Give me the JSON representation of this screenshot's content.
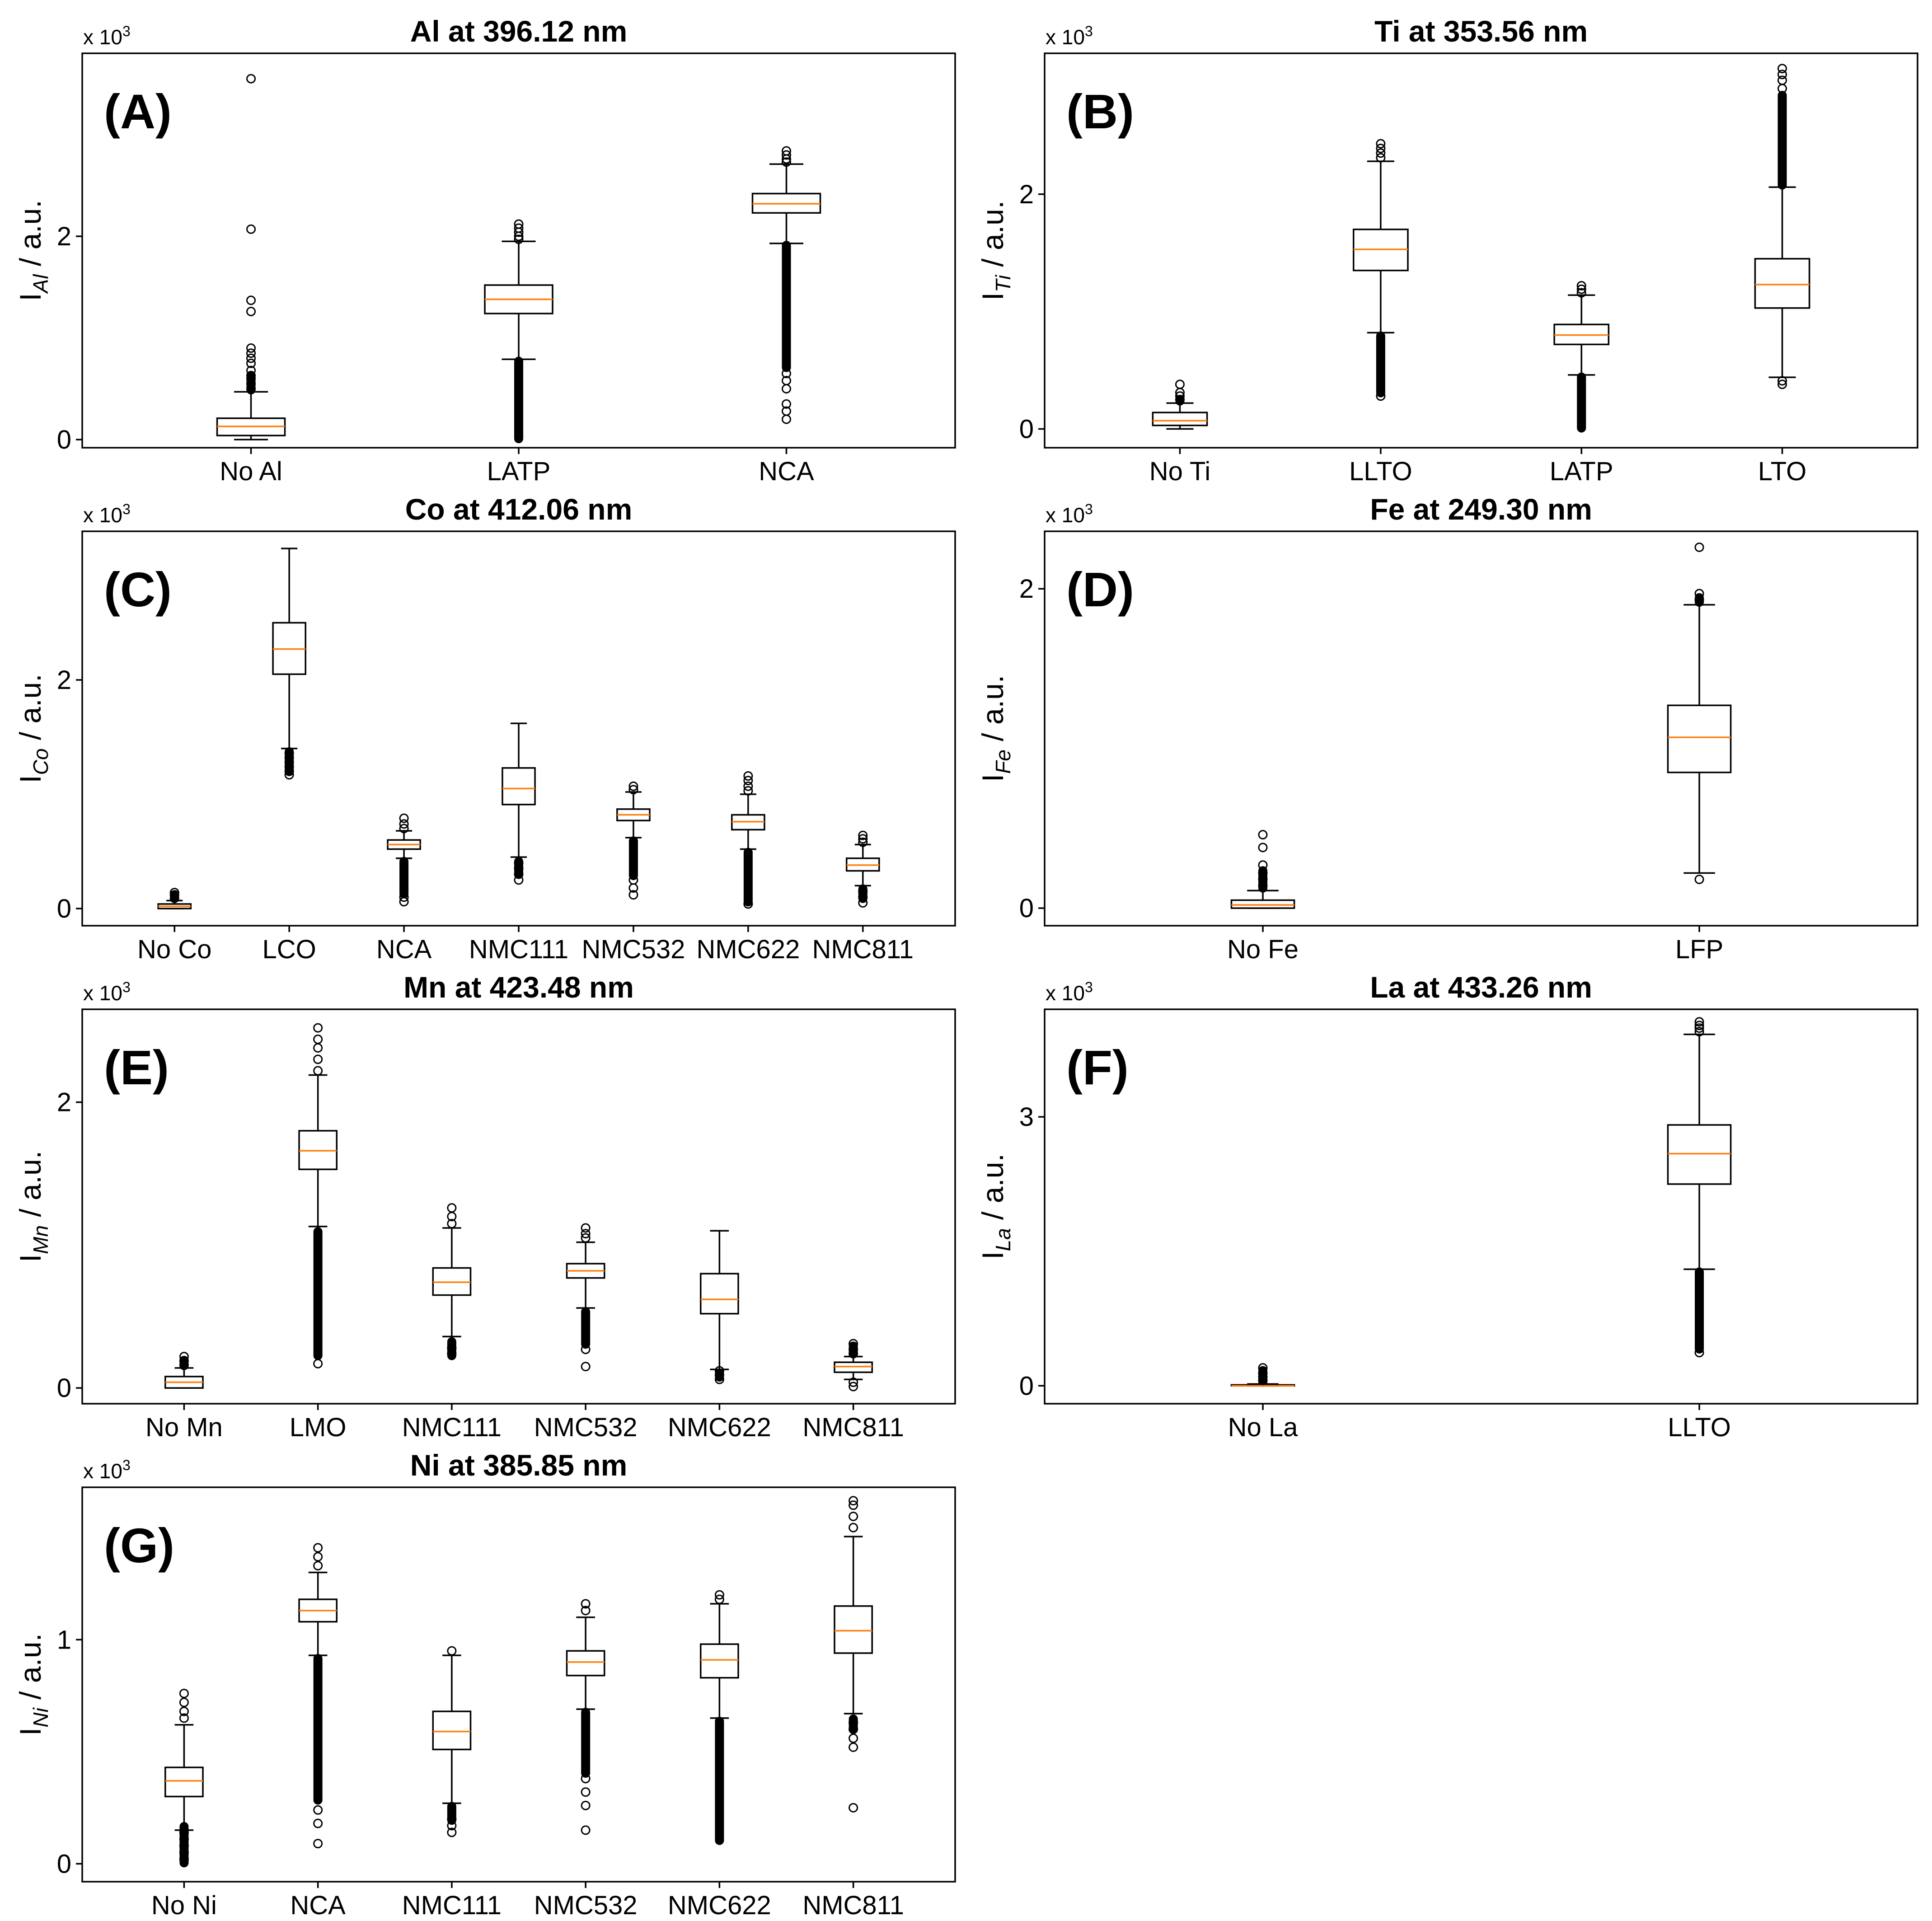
{
  "chart_data": [
    {
      "type": "boxplot",
      "panel": "(A)",
      "title": "Al at 396.12 nm",
      "ylabel_main": "I",
      "ylabel_sub": "Al",
      "ylabel_suffix": " / a.u.",
      "y_multiplier": "x 10",
      "y_multiplier_exp": "3",
      "ylim": [
        -0.08,
        3.8
      ],
      "yticks": [
        0,
        2
      ],
      "categories": [
        "No Al",
        "LATP",
        "NCA"
      ],
      "boxes": [
        {
          "q1": 0.04,
          "median": 0.13,
          "q3": 0.21,
          "whislo": 0.0,
          "whishi": 0.47,
          "fliers": [
            0.5,
            0.55,
            0.6,
            0.63,
            0.68,
            0.75,
            0.8,
            0.85,
            0.9,
            1.26,
            1.37,
            2.07,
            3.55
          ],
          "flier_band": [
            0.48,
            0.64
          ]
        },
        {
          "q1": 1.24,
          "median": 1.38,
          "q3": 1.52,
          "whislo": 0.79,
          "whishi": 1.95,
          "fliers": [
            1.97,
            2.0,
            2.04,
            2.08,
            2.12
          ],
          "flier_band": [
            0.0,
            0.78
          ]
        },
        {
          "q1": 2.23,
          "median": 2.32,
          "q3": 2.42,
          "whislo": 1.93,
          "whishi": 2.71,
          "fliers": [
            2.73,
            2.76,
            2.8,
            2.84,
            0.2,
            0.28,
            0.35,
            0.5,
            0.58,
            0.65
          ],
          "flier_band": [
            0.7,
            1.92
          ]
        }
      ]
    },
    {
      "type": "boxplot",
      "panel": "(B)",
      "title": "Ti at 353.56 nm",
      "ylabel_main": "I",
      "ylabel_sub": "Ti",
      "ylabel_suffix": " / a.u.",
      "y_multiplier": "x 10",
      "y_multiplier_exp": "3",
      "ylim": [
        -0.16,
        3.2
      ],
      "yticks": [
        0,
        2
      ],
      "categories": [
        "No Ti",
        "LLTO",
        "LATP",
        "LTO"
      ],
      "boxes": [
        {
          "q1": 0.03,
          "median": 0.07,
          "q3": 0.14,
          "whislo": 0.0,
          "whishi": 0.22,
          "fliers": [
            0.25,
            0.28,
            0.31,
            0.38
          ],
          "flier_band": [
            0.23,
            0.26
          ]
        },
        {
          "q1": 1.35,
          "median": 1.53,
          "q3": 1.7,
          "whislo": 0.82,
          "whishi": 2.28,
          "fliers": [
            2.31,
            2.35,
            2.39,
            2.43,
            0.28
          ],
          "flier_band": [
            0.3,
            0.8
          ]
        },
        {
          "q1": 0.72,
          "median": 0.8,
          "q3": 0.89,
          "whislo": 0.46,
          "whishi": 1.14,
          "fliers": [
            1.16,
            1.19,
            1.22
          ],
          "flier_band": [
            0.0,
            0.45
          ]
        },
        {
          "q1": 1.03,
          "median": 1.23,
          "q3": 1.45,
          "whislo": 0.44,
          "whishi": 2.06,
          "fliers": [
            2.9,
            2.97,
            3.02,
            3.07,
            0.38,
            0.41
          ],
          "flier_band": [
            2.07,
            2.85
          ]
        }
      ]
    },
    {
      "type": "boxplot",
      "panel": "(C)",
      "title": "Co at 412.06 nm",
      "ylabel_main": "I",
      "ylabel_sub": "Co",
      "ylabel_suffix": " / a.u.",
      "y_multiplier": "x 10",
      "y_multiplier_exp": "3",
      "ylim": [
        -0.15,
        3.3
      ],
      "yticks": [
        0,
        2
      ],
      "categories": [
        "No Co",
        "LCO",
        "NCA",
        "NMC111",
        "NMC532",
        "NMC622",
        "NMC811"
      ],
      "boxes": [
        {
          "q1": 0.0,
          "median": 0.02,
          "q3": 0.04,
          "whislo": 0.0,
          "whishi": 0.07,
          "fliers": [
            0.09,
            0.12,
            0.14
          ],
          "flier_band": [
            0.08,
            0.12
          ]
        },
        {
          "q1": 2.05,
          "median": 2.27,
          "q3": 2.5,
          "whislo": 1.4,
          "whishi": 3.15,
          "fliers": [
            1.17,
            1.2,
            1.24,
            1.28,
            1.32,
            1.36
          ],
          "flier_band": [
            1.2,
            1.38
          ]
        },
        {
          "q1": 0.52,
          "median": 0.56,
          "q3": 0.6,
          "whislo": 0.44,
          "whishi": 0.68,
          "fliers": [
            0.7,
            0.74,
            0.79,
            0.06,
            0.1
          ],
          "flier_band": [
            0.12,
            0.42
          ]
        },
        {
          "q1": 0.91,
          "median": 1.05,
          "q3": 1.23,
          "whislo": 0.45,
          "whishi": 1.62,
          "fliers": [
            0.25,
            0.3,
            0.35,
            0.4
          ],
          "flier_band": [
            0.3,
            0.42
          ]
        },
        {
          "q1": 0.77,
          "median": 0.82,
          "q3": 0.87,
          "whislo": 0.62,
          "whishi": 1.02,
          "fliers": [
            1.04,
            1.07,
            0.12,
            0.18,
            0.25
          ],
          "flier_band": [
            0.28,
            0.6
          ]
        },
        {
          "q1": 0.69,
          "median": 0.76,
          "q3": 0.82,
          "whislo": 0.52,
          "whishi": 1.0,
          "fliers": [
            1.03,
            1.07,
            1.12,
            1.16,
            0.04
          ],
          "flier_band": [
            0.05,
            0.5
          ]
        },
        {
          "q1": 0.33,
          "median": 0.38,
          "q3": 0.44,
          "whislo": 0.2,
          "whishi": 0.56,
          "fliers": [
            0.58,
            0.61,
            0.64,
            0.05,
            0.1,
            0.15
          ],
          "flier_band": [
            0.08,
            0.18
          ]
        }
      ]
    },
    {
      "type": "boxplot",
      "panel": "(D)",
      "title": "Fe at 249.30 nm",
      "ylabel_main": "I",
      "ylabel_sub": "Fe",
      "ylabel_suffix": " / a.u.",
      "y_multiplier": "x 10",
      "y_multiplier_exp": "3",
      "ylim": [
        -0.11,
        2.36
      ],
      "yticks": [
        0,
        2
      ],
      "categories": [
        "No Fe",
        "LFP"
      ],
      "boxes": [
        {
          "q1": 0.0,
          "median": 0.02,
          "q3": 0.05,
          "whislo": 0.0,
          "whishi": 0.11,
          "fliers": [
            0.14,
            0.18,
            0.22,
            0.27,
            0.38,
            0.46
          ],
          "flier_band": [
            0.12,
            0.24
          ]
        },
        {
          "q1": 0.85,
          "median": 1.07,
          "q3": 1.27,
          "whislo": 0.22,
          "whishi": 1.9,
          "fliers": [
            1.93,
            1.97,
            2.26,
            0.18
          ],
          "flier_band": [
            1.91,
            1.95
          ]
        }
      ]
    },
    {
      "type": "boxplot",
      "panel": "(E)",
      "title": "Mn at 423.48 nm",
      "ylabel_main": "I",
      "ylabel_sub": "Mn",
      "ylabel_suffix": " / a.u.",
      "y_multiplier": "x 10",
      "y_multiplier_exp": "3",
      "ylim": [
        -0.11,
        2.65
      ],
      "yticks": [
        0,
        2
      ],
      "categories": [
        "No Mn",
        "LMO",
        "NMC111",
        "NMC532",
        "NMC622",
        "NMC811"
      ],
      "boxes": [
        {
          "q1": 0.0,
          "median": 0.04,
          "q3": 0.08,
          "whislo": 0.0,
          "whishi": 0.14,
          "fliers": [
            0.16,
            0.19,
            0.22
          ],
          "flier_band": [
            0.15,
            0.2
          ]
        },
        {
          "q1": 1.53,
          "median": 1.66,
          "q3": 1.8,
          "whislo": 1.13,
          "whishi": 2.19,
          "fliers": [
            2.22,
            2.3,
            2.38,
            2.44,
            2.52,
            0.17
          ],
          "flier_band": [
            0.22,
            1.1
          ]
        },
        {
          "q1": 0.65,
          "median": 0.74,
          "q3": 0.84,
          "whislo": 0.36,
          "whishi": 1.12,
          "fliers": [
            1.15,
            1.2,
            1.26,
            0.24,
            0.28
          ],
          "flier_band": [
            0.22,
            0.33
          ]
        },
        {
          "q1": 0.77,
          "median": 0.82,
          "q3": 0.87,
          "whislo": 0.56,
          "whishi": 1.02,
          "fliers": [
            1.05,
            1.08,
            1.12,
            0.15,
            0.27
          ],
          "flier_band": [
            0.3,
            0.54
          ]
        },
        {
          "q1": 0.52,
          "median": 0.62,
          "q3": 0.8,
          "whislo": 0.13,
          "whishi": 1.1,
          "fliers": [
            0.06,
            0.09,
            0.12
          ],
          "flier_band": [
            0.07,
            0.11
          ]
        },
        {
          "q1": 0.11,
          "median": 0.15,
          "q3": 0.18,
          "whislo": 0.06,
          "whishi": 0.22,
          "fliers": [
            0.24,
            0.27,
            0.31,
            0.01,
            0.04
          ],
          "flier_band": [
            0.24,
            0.3
          ]
        }
      ]
    },
    {
      "type": "boxplot",
      "panel": "(F)",
      "title": "La at 433.26 nm",
      "ylabel_main": "I",
      "ylabel_sub": "La",
      "ylabel_suffix": " / a.u.",
      "y_multiplier": "x 10",
      "y_multiplier_exp": "3",
      "ylim": [
        -0.2,
        4.2
      ],
      "yticks": [
        0,
        3
      ],
      "categories": [
        "No La",
        "LLTO"
      ],
      "boxes": [
        {
          "q1": 0.0,
          "median": 0.0,
          "q3": 0.01,
          "whislo": 0.0,
          "whishi": 0.02,
          "fliers": [
            0.06,
            0.1,
            0.14,
            0.2
          ],
          "flier_band": [
            0.03,
            0.18
          ]
        },
        {
          "q1": 2.25,
          "median": 2.59,
          "q3": 2.91,
          "whislo": 1.3,
          "whishi": 3.92,
          "fliers": [
            3.95,
            3.99,
            4.02,
            4.06,
            0.37
          ],
          "flier_band": [
            0.4,
            1.28
          ]
        }
      ]
    },
    {
      "type": "boxplot",
      "panel": "(G)",
      "title": "Ni at 385.85 nm",
      "ylabel_main": "I",
      "ylabel_sub": "Ni",
      "ylabel_suffix": " / a.u.",
      "y_multiplier": "x 10",
      "y_multiplier_exp": "3",
      "ylim": [
        -0.08,
        1.68
      ],
      "yticks": [
        0,
        1
      ],
      "categories": [
        "No Ni",
        "NCA",
        "NMC111",
        "NMC532",
        "NMC622",
        "NMC811"
      ],
      "boxes": [
        {
          "q1": 0.3,
          "median": 0.37,
          "q3": 0.43,
          "whislo": 0.15,
          "whishi": 0.62,
          "fliers": [
            0.65,
            0.68,
            0.72,
            0.76,
            0.02,
            0.05,
            0.08,
            0.11,
            0.14
          ],
          "flier_band": [
            0.0,
            0.17
          ]
        },
        {
          "q1": 1.08,
          "median": 1.13,
          "q3": 1.18,
          "whislo": 0.93,
          "whishi": 1.3,
          "fliers": [
            1.33,
            1.37,
            1.41,
            0.09,
            0.18,
            0.24
          ],
          "flier_band": [
            0.28,
            0.92
          ]
        },
        {
          "q1": 0.51,
          "median": 0.59,
          "q3": 0.68,
          "whislo": 0.27,
          "whishi": 0.93,
          "fliers": [
            0.95,
            0.14,
            0.17,
            0.2
          ],
          "flier_band": [
            0.19,
            0.26
          ]
        },
        {
          "q1": 0.84,
          "median": 0.9,
          "q3": 0.95,
          "whislo": 0.69,
          "whishi": 1.1,
          "fliers": [
            1.13,
            1.16,
            0.15,
            0.26,
            0.32,
            0.38
          ],
          "flier_band": [
            0.4,
            0.68
          ]
        },
        {
          "q1": 0.83,
          "median": 0.91,
          "q3": 0.98,
          "whislo": 0.65,
          "whishi": 1.16,
          "fliers": [
            1.18,
            1.2
          ],
          "flier_band": [
            0.1,
            0.64
          ]
        },
        {
          "q1": 0.94,
          "median": 1.04,
          "q3": 1.15,
          "whislo": 0.67,
          "whishi": 1.46,
          "fliers": [
            1.5,
            1.55,
            1.6,
            1.62,
            0.25,
            0.52,
            0.56,
            0.6,
            0.63
          ],
          "flier_band": [
            0.6,
            0.65
          ]
        }
      ]
    }
  ]
}
